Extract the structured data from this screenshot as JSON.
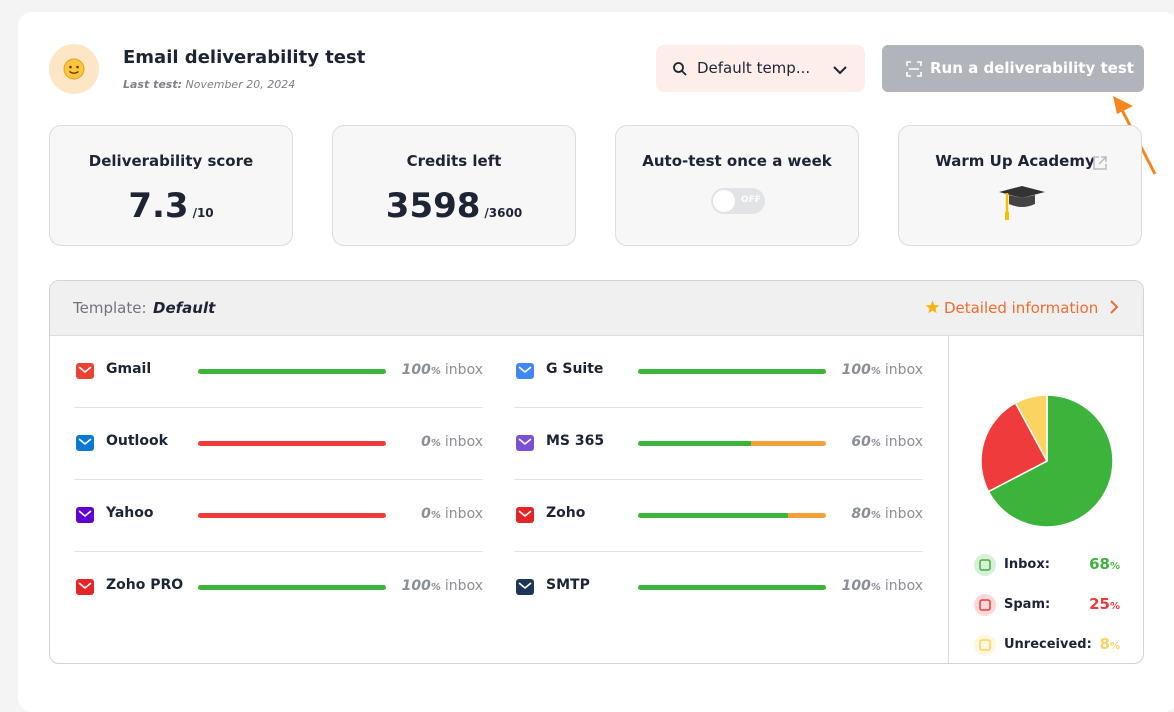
{
  "header": {
    "title": "Email deliverability test",
    "last_test_label": "Last test:",
    "last_test_date": "November 20, 2024",
    "template_select": "Default temp...",
    "run_button": "Run a deliverability test"
  },
  "stats": [
    {
      "label": "Deliverability score",
      "value": 7.3,
      "suffix": "/10"
    },
    {
      "label": "Credits left",
      "value": 3598,
      "suffix": "/3600"
    },
    {
      "label": "Auto-test once a week",
      "toggle": "OFF"
    },
    {
      "label": "Warm Up Academy"
    }
  ],
  "results": {
    "template_label": "Template:",
    "template_name": "Default",
    "details_link": "Detailed information",
    "unit": "%",
    "status": "inbox",
    "providers": [
      {
        "name": "Gmail",
        "inbox": 100,
        "spam": 0,
        "unreceived": 0
      },
      {
        "name": "G Suite",
        "inbox": 100,
        "spam": 0,
        "unreceived": 0
      },
      {
        "name": "Outlook",
        "inbox": 0,
        "spam": 100,
        "unreceived": 0
      },
      {
        "name": "MS 365",
        "inbox": 60,
        "spam": 0,
        "unreceived": 40
      },
      {
        "name": "Yahoo",
        "inbox": 0,
        "spam": 100,
        "unreceived": 0
      },
      {
        "name": "Zoho",
        "inbox": 80,
        "spam": 0,
        "unreceived": 20
      },
      {
        "name": "Zoho PRO",
        "inbox": 100,
        "spam": 0,
        "unreceived": 0
      },
      {
        "name": "SMTP",
        "inbox": 100,
        "spam": 0,
        "unreceived": 0
      }
    ],
    "summary": [
      {
        "label": "Inbox:",
        "value": 68,
        "color": "#3cb43c"
      },
      {
        "label": "Spam:",
        "value": 25,
        "color": "#ef3b3b"
      },
      {
        "label": "Unreceived:",
        "value": 8,
        "color": "#fbd360"
      }
    ]
  }
}
